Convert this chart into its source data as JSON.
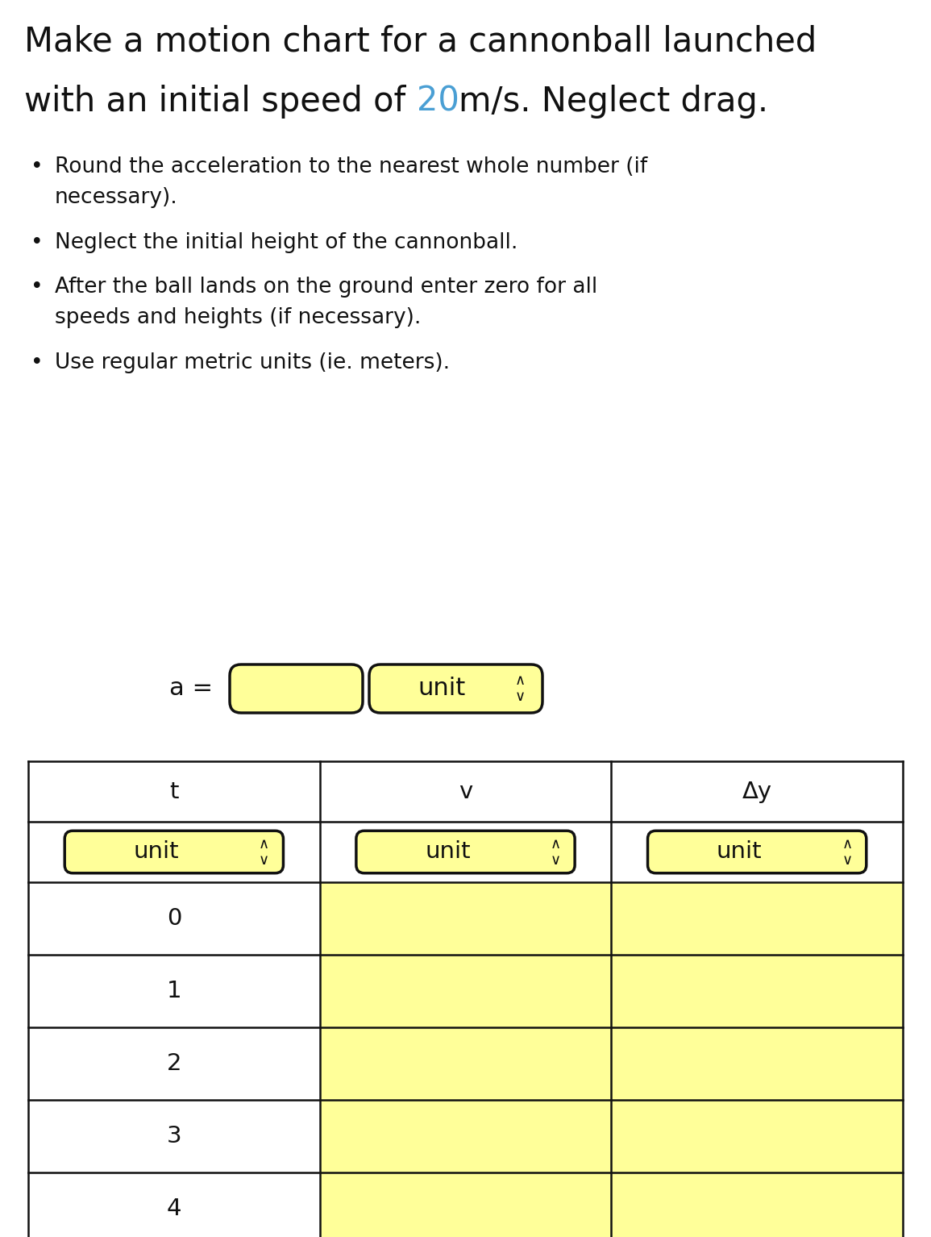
{
  "title_line1": "Make a motion chart for a cannonball launched",
  "title_line2_prefix": "with an initial speed of ",
  "title_line2_highlight": "20",
  "title_line2_suffix": "m/s. Neglect drag.",
  "highlight_color": "#4a9fd4",
  "bullet_points": [
    [
      "Round the acceleration to the nearest whole number (if",
      "necessary)."
    ],
    [
      "Neglect the initial height of the cannonball."
    ],
    [
      "After the ball lands on the ground enter zero for all",
      "speeds and heights (if necessary)."
    ],
    [
      "Use regular metric units (ie. meters)."
    ]
  ],
  "a_label": "a =",
  "unit_label": "unit",
  "chevron": "◈",
  "col_headers": [
    "t",
    "v",
    "Δy"
  ],
  "col_unit_labels": [
    "unit",
    "unit",
    "unit"
  ],
  "t_values": [
    "0",
    "1",
    "2",
    "3",
    "4"
  ],
  "background_color": "#ffffff",
  "input_box_color": "#ffff99",
  "input_box_border": "#111111",
  "table_border_color": "#111111",
  "table_header_bg": "#ffffff",
  "table_data_col0_bg": "#ffffff",
  "table_data_col1_bg": "#ffff99",
  "table_data_col2_bg": "#ffff99",
  "text_color": "#111111",
  "title_fontsize": 30,
  "body_fontsize": 19,
  "table_fontsize": 21,
  "a_fontsize": 22
}
